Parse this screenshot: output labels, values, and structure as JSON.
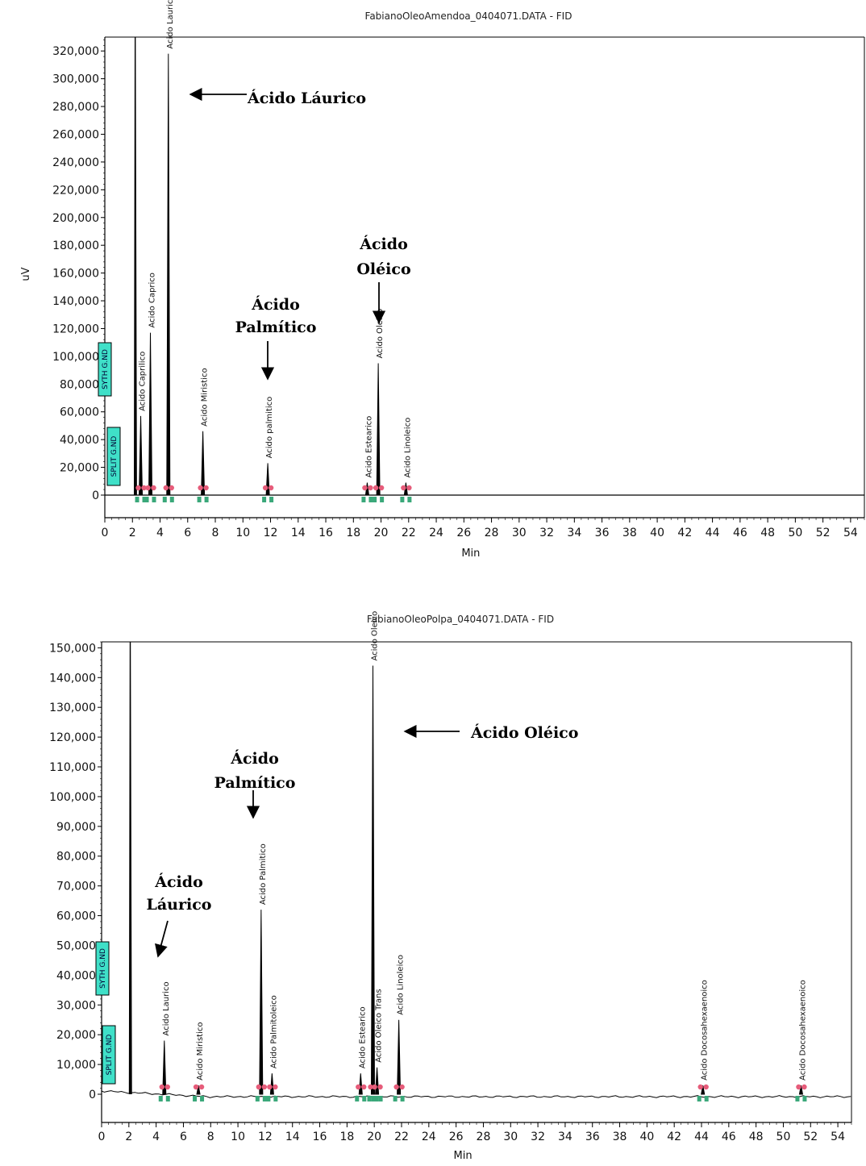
{
  "chart_data": [
    {
      "type": "line",
      "title": "FabianoOleoAmendoa_0404071.DATA - FID",
      "xlabel": "Min",
      "ylabel": "uV",
      "xlim": [
        0,
        55
      ],
      "ylim": [
        -12000,
        330000
      ],
      "x_ticks": [
        "0",
        "2",
        "4",
        "6",
        "8",
        "10",
        "12",
        "14",
        "16",
        "18",
        "20",
        "22",
        "24",
        "26",
        "28",
        "30",
        "32",
        "34",
        "36",
        "38",
        "40",
        "42",
        "44",
        "46",
        "48",
        "50",
        "52",
        "54"
      ],
      "y_ticks": [
        "0",
        "20,000",
        "40,000",
        "60,000",
        "80,000",
        "100,000",
        "120,000",
        "140,000",
        "160,000",
        "180,000",
        "200,000",
        "220,000",
        "240,000",
        "260,000",
        "280,000",
        "300,000",
        "320,000"
      ],
      "solvent_front": {
        "x": 2.2,
        "y": 330000
      },
      "peaks": [
        {
          "label": "Acido Caprilico",
          "x": 2.6,
          "y": 57000
        },
        {
          "label": "Acido Caprico",
          "x": 3.3,
          "y": 117000
        },
        {
          "label": "Acido Laurico",
          "x": 4.6,
          "y": 318000
        },
        {
          "label": "Acido Miristico",
          "x": 7.1,
          "y": 46000
        },
        {
          "label": "Acido palmitico",
          "x": 11.8,
          "y": 23000
        },
        {
          "label": "Acido Estearico",
          "x": 19.0,
          "y": 9000
        },
        {
          "label": "Acido Oleico",
          "x": 19.8,
          "y": 95000
        },
        {
          "label": "Acido Linoleico",
          "x": 21.8,
          "y": 9000
        }
      ],
      "badges": [
        "SYTH G.ND",
        "SPLIT G.ND"
      ],
      "annotations": [
        {
          "text": "Ácido Láurico",
          "target": "Acido Laurico"
        },
        {
          "text": "Ácido Palmítico",
          "target": "Acido palmitico"
        },
        {
          "text": "Ácido Oléico",
          "target": "Acido Oleico"
        }
      ]
    },
    {
      "type": "line",
      "title": "FabianoOleoPolpa_0404071.DATA - FID",
      "xlabel": "Min",
      "ylabel": "",
      "xlim": [
        0,
        55
      ],
      "ylim": [
        -6000,
        152000
      ],
      "x_ticks": [
        "0",
        "2",
        "4",
        "6",
        "8",
        "10",
        "12",
        "14",
        "16",
        "18",
        "20",
        "22",
        "24",
        "26",
        "28",
        "30",
        "32",
        "34",
        "36",
        "38",
        "40",
        "42",
        "44",
        "46",
        "48",
        "50",
        "52",
        "54"
      ],
      "y_ticks": [
        "0",
        "10,000",
        "20,000",
        "30,000",
        "40,000",
        "50,000",
        "60,000",
        "70,000",
        "80,000",
        "90,000",
        "100,000",
        "110,000",
        "120,000",
        "130,000",
        "140,000",
        "150,000"
      ],
      "solvent_front": {
        "x": 2.1,
        "y": 152000
      },
      "peaks": [
        {
          "label": "Acido Laurico",
          "x": 4.6,
          "y": 18000
        },
        {
          "label": "Acido Miristico",
          "x": 7.1,
          "y": 3000
        },
        {
          "label": "Acido Palmitico",
          "x": 11.7,
          "y": 62000
        },
        {
          "label": "Acido Palmitoleico",
          "x": 12.5,
          "y": 7000
        },
        {
          "label": "Acido Estearico",
          "x": 19.0,
          "y": 7000
        },
        {
          "label": "Acido Oleico",
          "x": 19.9,
          "y": 144000
        },
        {
          "label": "Acido Oleico Trans",
          "x": 20.2,
          "y": 9000
        },
        {
          "label": "Acido Linoleico",
          "x": 21.8,
          "y": 25000
        },
        {
          "label": "Acido Docosahexaenoico",
          "x": 44.1,
          "y": 3000
        },
        {
          "label": "Acido Docosahexaenoico",
          "x": 51.3,
          "y": 3000
        }
      ],
      "badges": [
        "SYTH G.ND",
        "SPLIT G.ND"
      ],
      "annotations": [
        {
          "text": "Ácido Láurico",
          "target": "Acido Laurico"
        },
        {
          "text": "Ácido Palmítico",
          "target": "Acido Palmitico"
        },
        {
          "text": "Ácido Oléico",
          "target": "Acido Oleico"
        }
      ]
    }
  ]
}
